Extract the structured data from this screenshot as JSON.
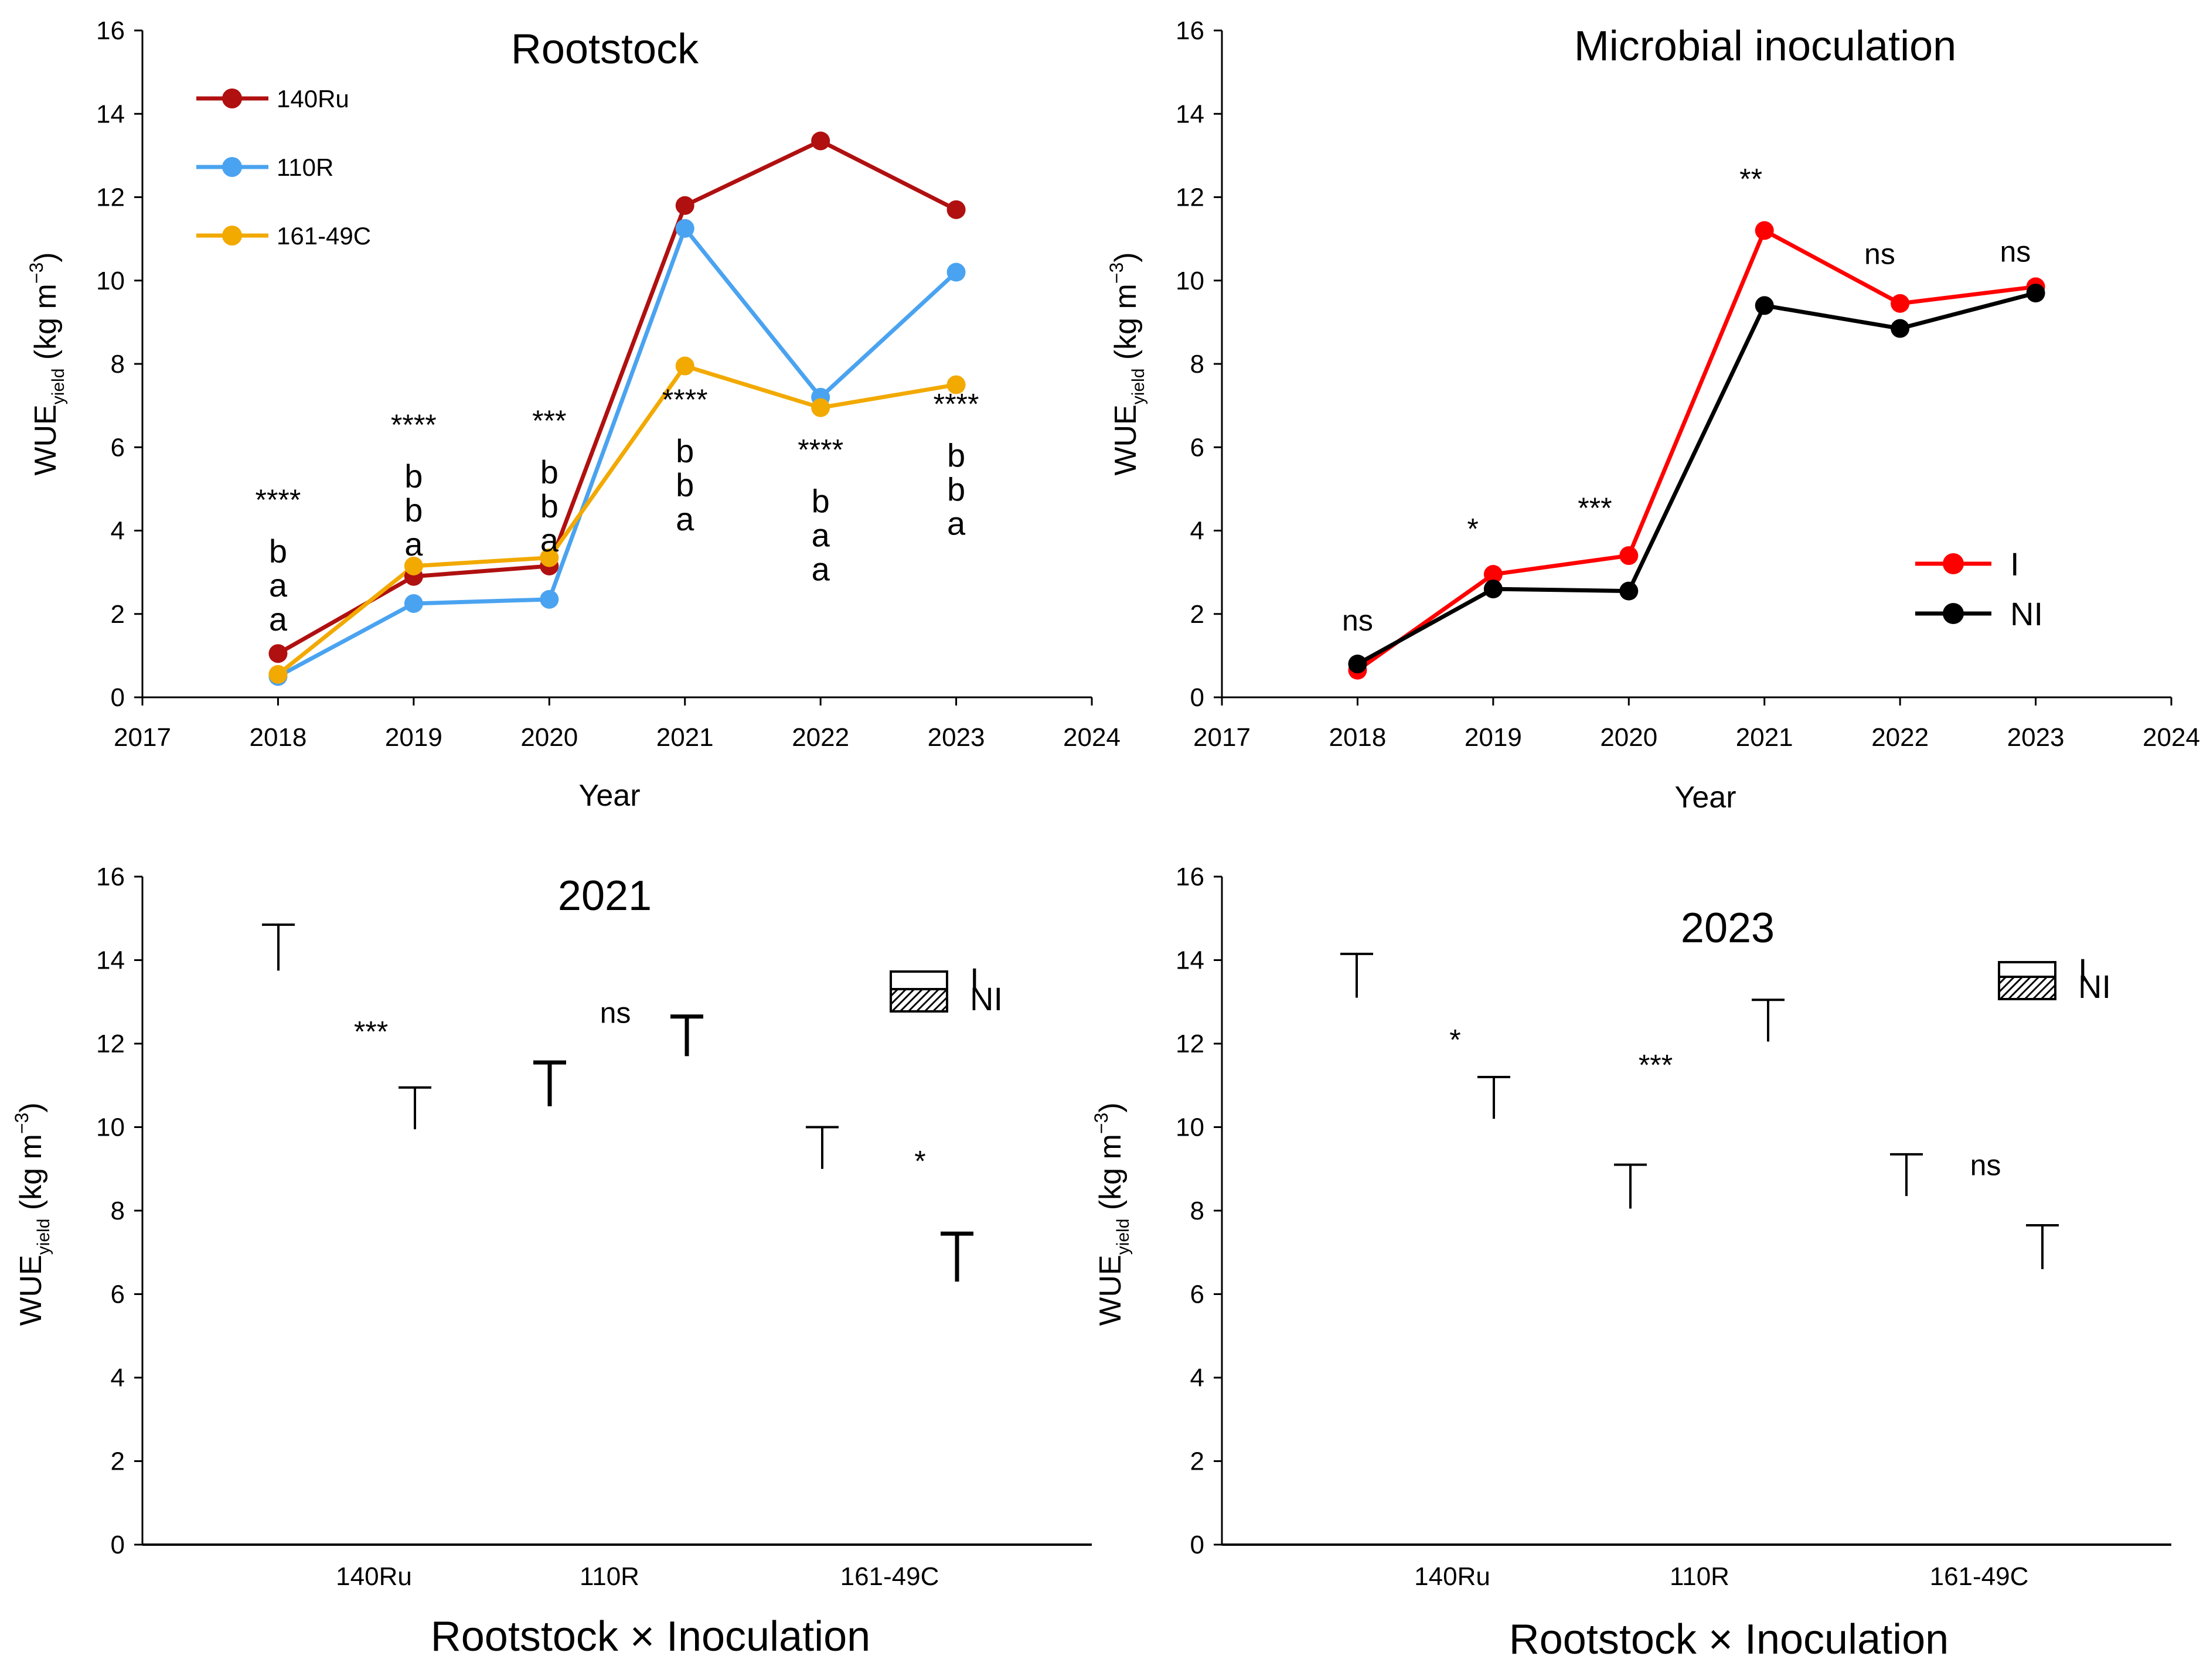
{
  "chart_data": [
    {
      "id": "rootstock",
      "type": "line",
      "title": "Rootstock",
      "xlabel": "Year",
      "ylabel_main": "WUE",
      "ylabel_sub": "yield",
      "ylabel_unit_pre": " (kg m",
      "ylabel_unit_sup": "−3",
      "ylabel_unit_post": ")",
      "xlim": [
        2017,
        2024
      ],
      "ylim": [
        0,
        16
      ],
      "xticks": [
        2017,
        2018,
        2019,
        2020,
        2021,
        2022,
        2023,
        2024
      ],
      "yticks": [
        0,
        2,
        4,
        6,
        8,
        10,
        12,
        14,
        16
      ],
      "x": [
        2018,
        2019,
        2020,
        2021,
        2022,
        2023
      ],
      "series": [
        {
          "name": "140Ru",
          "color": "#b01010",
          "values": [
            1.05,
            2.9,
            3.15,
            11.8,
            13.35,
            11.7
          ]
        },
        {
          "name": "110R",
          "color": "#4aa3f0",
          "values": [
            0.5,
            2.25,
            2.35,
            11.25,
            7.2,
            10.2
          ]
        },
        {
          "name": "161-49C",
          "color": "#f2a900",
          "values": [
            0.55,
            3.15,
            3.35,
            7.95,
            6.95,
            7.5
          ]
        }
      ],
      "legend_position": "top-left",
      "annotations": [
        {
          "x": 2018,
          "y": 4.5,
          "sig": "****",
          "letters": [
            "b",
            "a",
            "a"
          ]
        },
        {
          "x": 2019,
          "y": 6.3,
          "sig": "****",
          "letters": [
            "b",
            "b",
            "a"
          ]
        },
        {
          "x": 2020,
          "y": 6.4,
          "sig": "***",
          "letters": [
            "b",
            "b",
            "a"
          ]
        },
        {
          "x": 2021,
          "y": 6.9,
          "sig": "****",
          "letters": [
            "b",
            "b",
            "a"
          ]
        },
        {
          "x": 2022,
          "y": 5.7,
          "sig": "****",
          "letters": [
            "b",
            "a",
            "a"
          ]
        },
        {
          "x": 2023,
          "y": 6.8,
          "sig": "****",
          "letters": [
            "b",
            "b",
            "a"
          ]
        }
      ]
    },
    {
      "id": "microbial",
      "type": "line",
      "title": "Microbial inoculation",
      "xlabel": "Year",
      "ylabel_main": "WUE",
      "ylabel_sub": "yield",
      "ylabel_unit_pre": " (kg m",
      "ylabel_unit_sup": "−3",
      "ylabel_unit_post": ")",
      "xlim": [
        2017,
        2024
      ],
      "ylim": [
        0,
        16
      ],
      "xticks": [
        2017,
        2018,
        2019,
        2020,
        2021,
        2022,
        2023,
        2024
      ],
      "yticks": [
        0,
        2,
        4,
        6,
        8,
        10,
        12,
        14,
        16
      ],
      "x": [
        2018,
        2019,
        2020,
        2021,
        2022,
        2023
      ],
      "series": [
        {
          "name": "I",
          "color": "#ff0000",
          "values": [
            0.65,
            2.95,
            3.4,
            11.2,
            9.45,
            9.85
          ]
        },
        {
          "name": "NI",
          "color": "#000000",
          "values": [
            0.8,
            2.6,
            2.55,
            9.4,
            8.85,
            9.7
          ]
        }
      ],
      "legend_position": "middle-right",
      "annotations": [
        {
          "x": 2018,
          "y": 1.6,
          "sig": "ns"
        },
        {
          "x": 2018.85,
          "y": 3.8,
          "sig": "*"
        },
        {
          "x": 2019.75,
          "y": 4.3,
          "sig": "***"
        },
        {
          "x": 2020.9,
          "y": 12.2,
          "sig": "**"
        },
        {
          "x": 2021.85,
          "y": 10.4,
          "sig": "ns"
        },
        {
          "x": 2022.85,
          "y": 10.45,
          "sig": "ns"
        }
      ]
    },
    {
      "id": "bars2021",
      "type": "bar",
      "title": "2021",
      "xlabel": "Rootstock × Inoculation",
      "ylabel_main": "WUE",
      "ylabel_sub": "yield",
      "ylabel_unit_pre": " (kg m",
      "ylabel_unit_sup": "−3",
      "ylabel_unit_post": ")",
      "ylim": [
        0,
        16
      ],
      "yticks": [
        0,
        2,
        4,
        6,
        8,
        10,
        12,
        14,
        16
      ],
      "categories": [
        "140Ru",
        "110R",
        "161-49C"
      ],
      "legend": [
        "I",
        "NI"
      ],
      "legend_position": "top-right",
      "errorbars": [
        {
          "group": 0,
          "member": "I",
          "top": 14.85,
          "bottom": 13.75
        },
        {
          "group": 0,
          "member": "NI",
          "top": 10.95,
          "bottom": 9.95
        },
        {
          "group": 1,
          "member": "I",
          "top": 11.55,
          "bottom": 10.5
        },
        {
          "group": 1,
          "member": "NI",
          "top": 12.65,
          "bottom": 11.7
        },
        {
          "group": 2,
          "member": "I",
          "top": 10.0,
          "bottom": 9.0
        },
        {
          "group": 2,
          "member": "NI",
          "top": 7.45,
          "bottom": 6.3
        }
      ],
      "significance": [
        {
          "group": 0,
          "y": 12.05,
          "sig": "***"
        },
        {
          "group": 1,
          "y": 12.5,
          "sig": "ns"
        },
        {
          "group": 2,
          "y": 8.95,
          "sig": "*"
        }
      ]
    },
    {
      "id": "bars2023",
      "type": "bar",
      "title": "2023",
      "xlabel": "Rootstock × Inoculation",
      "ylabel_main": "WUE",
      "ylabel_sub": "yield",
      "ylabel_unit_pre": " (kg m",
      "ylabel_unit_sup": "−3",
      "ylabel_unit_post": ")",
      "ylim": [
        0,
        16
      ],
      "yticks": [
        0,
        2,
        4,
        6,
        8,
        10,
        12,
        14,
        16
      ],
      "categories": [
        "140Ru",
        "110R",
        "161-49C"
      ],
      "legend": [
        "I",
        "NI"
      ],
      "legend_position": "top-right",
      "errorbars": [
        {
          "group": 0,
          "member": "I",
          "top": 14.15,
          "bottom": 13.1
        },
        {
          "group": 0,
          "member": "NI",
          "top": 11.2,
          "bottom": 10.2
        },
        {
          "group": 1,
          "member": "I",
          "top": 9.1,
          "bottom": 8.05
        },
        {
          "group": 1,
          "member": "NI",
          "top": 13.05,
          "bottom": 12.05
        },
        {
          "group": 2,
          "member": "I",
          "top": 9.35,
          "bottom": 8.35
        },
        {
          "group": 2,
          "member": "NI",
          "top": 7.65,
          "bottom": 6.6
        }
      ],
      "significance": [
        {
          "group": 0,
          "y": 11.85,
          "sig": "*"
        },
        {
          "group": 1,
          "y": 11.25,
          "sig": "***"
        },
        {
          "group": 2,
          "y": 8.85,
          "sig": "ns"
        }
      ]
    }
  ]
}
